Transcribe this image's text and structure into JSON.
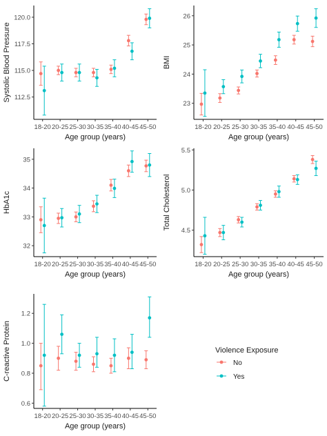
{
  "legend": {
    "title": "Violence Exposure",
    "items": [
      {
        "label": "No",
        "color": "#F8766D"
      },
      {
        "label": "Yes",
        "color": "#00BFC4"
      }
    ]
  },
  "chart_data": [
    {
      "type": "scatter",
      "title": "",
      "xlabel": "Age group (years)",
      "ylabel": "Systolic Blood Pressure",
      "categories": [
        "18-20",
        "20-25",
        "25-30",
        "30-35",
        "35-40",
        "40-45",
        "45-50"
      ],
      "yticks": [
        112.5,
        115.0,
        117.5,
        120.0
      ],
      "ytick_labels": [
        "112.5",
        "115.0",
        "117.5",
        "120.0"
      ],
      "ylim": [
        110.4,
        121.1
      ],
      "series": [
        {
          "name": "No",
          "color": "#F8766D",
          "values": [
            114.7,
            115.0,
            114.8,
            114.8,
            115.1,
            117.8,
            119.8
          ],
          "lower": [
            113.6,
            114.6,
            114.4,
            114.4,
            114.7,
            117.3,
            119.3
          ],
          "upper": [
            115.8,
            115.4,
            115.2,
            115.2,
            115.5,
            118.3,
            120.3
          ]
        },
        {
          "name": "Yes",
          "color": "#00BFC4",
          "values": [
            113.1,
            114.8,
            114.8,
            114.3,
            115.2,
            116.8,
            119.9
          ],
          "lower": [
            110.8,
            114.0,
            114.0,
            113.5,
            114.4,
            116.0,
            119.0
          ],
          "upper": [
            115.4,
            115.6,
            115.6,
            115.1,
            116.0,
            117.6,
            120.8
          ]
        }
      ]
    },
    {
      "type": "scatter",
      "title": "",
      "xlabel": "Age group (years)",
      "ylabel": "BMI",
      "categories": [
        "18-20",
        "20-25",
        "25-30",
        "30-35",
        "35-40",
        "40-45",
        "45-50"
      ],
      "yticks": [
        23,
        24,
        25,
        26
      ],
      "ytick_labels": [
        "23",
        "24",
        "25",
        "26"
      ],
      "ylim": [
        22.45,
        26.35
      ],
      "series": [
        {
          "name": "No",
          "color": "#F8766D",
          "values": [
            22.97,
            23.18,
            23.44,
            24.02,
            24.48,
            25.18,
            25.12
          ],
          "lower": [
            22.6,
            23.03,
            23.32,
            23.9,
            24.33,
            25.03,
            24.94
          ],
          "upper": [
            23.34,
            23.33,
            23.56,
            24.14,
            24.63,
            25.33,
            25.3
          ]
        },
        {
          "name": "Yes",
          "color": "#00BFC4",
          "values": [
            23.35,
            23.57,
            23.92,
            24.45,
            25.18,
            25.73,
            25.92
          ],
          "lower": [
            22.55,
            23.33,
            23.7,
            24.22,
            24.92,
            25.47,
            25.6
          ],
          "upper": [
            24.15,
            23.81,
            24.14,
            24.68,
            25.44,
            25.99,
            26.24
          ]
        }
      ]
    },
    {
      "type": "scatter",
      "title": "",
      "xlabel": "Age group (years)",
      "ylabel": "HbA1c",
      "categories": [
        "18-20",
        "20-25",
        "25-30",
        "30-35",
        "35-40",
        "40-45",
        "45-50"
      ],
      "yticks": [
        32,
        33,
        34,
        35
      ],
      "ytick_labels": [
        "32",
        "33",
        "34",
        "35"
      ],
      "ylim": [
        31.62,
        35.38
      ],
      "series": [
        {
          "name": "No",
          "color": "#F8766D",
          "values": [
            32.9,
            32.95,
            33.0,
            33.37,
            34.1,
            34.6,
            34.77
          ],
          "lower": [
            32.45,
            32.77,
            32.83,
            33.18,
            33.9,
            34.4,
            34.57
          ],
          "upper": [
            33.35,
            33.13,
            33.17,
            33.56,
            34.3,
            34.8,
            34.97
          ]
        },
        {
          "name": "Yes",
          "color": "#00BFC4",
          "values": [
            32.7,
            32.97,
            33.1,
            33.45,
            33.99,
            34.92,
            34.8
          ],
          "lower": [
            31.75,
            32.65,
            32.8,
            33.15,
            33.67,
            34.55,
            34.4
          ],
          "upper": [
            33.65,
            33.29,
            33.4,
            33.75,
            34.31,
            35.29,
            35.2
          ]
        }
      ]
    },
    {
      "type": "scatter",
      "title": "",
      "xlabel": "Age group (years)",
      "ylabel": "Total Cholesterol",
      "categories": [
        "18-20",
        "20-25",
        "25-30",
        "30-35",
        "35-40",
        "40-45",
        "45-50"
      ],
      "yticks": [
        4.5,
        5.0,
        5.5
      ],
      "ytick_labels": [
        "4.5",
        "5.0",
        "5.5"
      ],
      "ylim": [
        4.17,
        5.52
      ],
      "series": [
        {
          "name": "No",
          "color": "#F8766D",
          "values": [
            4.32,
            4.47,
            4.63,
            4.79,
            4.95,
            5.14,
            5.38
          ],
          "lower": [
            4.22,
            4.42,
            4.59,
            4.75,
            4.91,
            5.1,
            5.33
          ],
          "upper": [
            4.42,
            4.52,
            4.67,
            4.83,
            4.99,
            5.18,
            5.43
          ]
        },
        {
          "name": "Yes",
          "color": "#00BFC4",
          "values": [
            4.43,
            4.47,
            4.6,
            4.81,
            4.98,
            5.13,
            5.27
          ],
          "lower": [
            4.2,
            4.38,
            4.54,
            4.75,
            4.91,
            5.07,
            5.18
          ],
          "upper": [
            4.66,
            4.56,
            4.66,
            4.87,
            5.05,
            5.19,
            5.36
          ]
        }
      ]
    },
    {
      "type": "scatter",
      "title": "",
      "xlabel": "Age group (years)",
      "ylabel": "C-reactive Protein",
      "categories": [
        "18-20",
        "20-25",
        "25-30",
        "30-35",
        "35-40",
        "40-45",
        "45-50"
      ],
      "yticks": [
        0.6,
        0.8,
        1.0,
        1.2
      ],
      "ytick_labels": [
        "0.6",
        "0.8",
        "1.0",
        "1.2"
      ],
      "ylim": [
        0.565,
        1.33
      ],
      "series": [
        {
          "name": "No",
          "color": "#F8766D",
          "values": [
            0.85,
            0.9,
            0.88,
            0.86,
            0.85,
            0.9,
            0.89
          ],
          "lower": [
            0.69,
            0.82,
            0.82,
            0.81,
            0.8,
            0.83,
            0.83
          ],
          "upper": [
            1.0,
            0.98,
            0.94,
            0.91,
            0.9,
            0.97,
            0.95
          ]
        },
        {
          "name": "Yes",
          "color": "#00BFC4",
          "values": [
            0.92,
            1.06,
            0.92,
            0.93,
            0.92,
            0.94,
            1.17
          ],
          "lower": [
            0.58,
            0.93,
            0.84,
            0.84,
            0.81,
            0.83,
            1.04
          ],
          "upper": [
            1.26,
            1.19,
            1.0,
            1.04,
            1.03,
            1.06,
            1.31
          ]
        }
      ]
    }
  ]
}
